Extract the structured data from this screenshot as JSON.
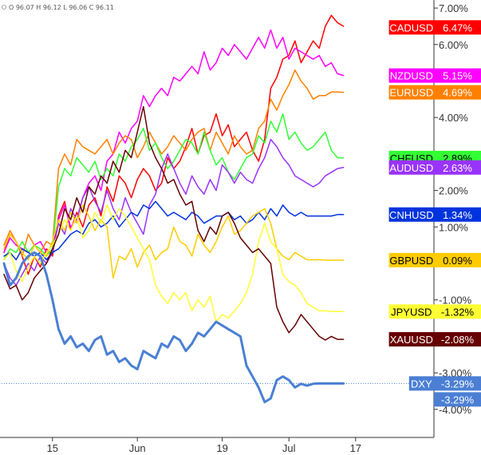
{
  "ohlc": {
    "o": "O",
    "o_val": "96.07",
    "h": "H",
    "h_val": "96.12",
    "l": "L",
    "l_val": "96.06",
    "c": "C",
    "c_val": "96.11"
  },
  "colors": {
    "axis": "#333333",
    "background": "#ffffff",
    "dxy_dotted": "#4a7fd4"
  },
  "chart_data": {
    "type": "line",
    "ylim": [
      -4.7,
      7.1
    ],
    "y_ticks": [
      {
        "value": 7,
        "label": "7.00%"
      },
      {
        "value": 6,
        "label": "6.00%"
      },
      {
        "value": 4,
        "label": "4.00%"
      },
      {
        "value": 2,
        "label": "2.00%"
      },
      {
        "value": 1,
        "label": "1.00%"
      },
      {
        "value": -1,
        "label": "-1.00%"
      },
      {
        "value": -3,
        "label": "-3.00%"
      },
      {
        "value": -4,
        "label": "-4.00%"
      }
    ],
    "x_ticks": [
      {
        "index": 8,
        "label": "15"
      },
      {
        "index": 22,
        "label": "Jun"
      },
      {
        "index": 36,
        "label": "19"
      },
      {
        "index": 47,
        "label": "Jul"
      },
      {
        "index": 58,
        "label": "17"
      }
    ],
    "reference_line": {
      "value": -3.29
    },
    "series": [
      {
        "name": "CADUSD",
        "last": "6.47%",
        "value": 6.47,
        "color": "#ff0000",
        "values": [
          0.3,
          0.8,
          0.6,
          0.2,
          -0.3,
          0.2,
          -0.1,
          0.4,
          0.2,
          1.3,
          1.7,
          0.9,
          1.4,
          1.0,
          1.6,
          1.8,
          1.3,
          2.1,
          1.7,
          2.4,
          2.2,
          1.8,
          2.3,
          2.6,
          2.4,
          2.0,
          2.2,
          2.9,
          2.6,
          2.8,
          3.2,
          3.7,
          3.0,
          3.5,
          3.6,
          4.1,
          3.5,
          3.8,
          3.2,
          3.4,
          3.6,
          3.1,
          2.8,
          3.4,
          4.8,
          5.1,
          5.6,
          5.7,
          6.1,
          5.5,
          5.8,
          6.1,
          5.9,
          6.5,
          6.8,
          6.6,
          6.5
        ]
      },
      {
        "name": "NZDUSD",
        "last": "5.15%",
        "value": 5.15,
        "color": "#ff00ff",
        "values": [
          0.3,
          0.7,
          0.5,
          0.4,
          0.3,
          0.5,
          0.6,
          0.3,
          0.5,
          1.2,
          1.6,
          1.0,
          1.2,
          1.8,
          2.2,
          2.4,
          2.0,
          2.8,
          3.0,
          3.6,
          3.3,
          3.7,
          3.9,
          4.6,
          4.3,
          4.6,
          4.8,
          4.6,
          5.1,
          5.0,
          5.2,
          5.4,
          5.2,
          5.8,
          5.3,
          5.5,
          5.9,
          5.7,
          6.0,
          5.8,
          5.6,
          5.9,
          6.2,
          5.9,
          6.4,
          5.9,
          6.2,
          5.6,
          5.9,
          5.8,
          5.7,
          5.6,
          5.7,
          5.4,
          5.5,
          5.2,
          5.15
        ]
      },
      {
        "name": "EURUSD",
        "last": "4.69%",
        "value": 4.69,
        "color": "#ff8000",
        "values": [
          0.5,
          0.9,
          0.6,
          0.2,
          0.8,
          0.5,
          0.3,
          0.6,
          0.5,
          2.6,
          3.0,
          2.7,
          3.4,
          3.2,
          3.1,
          3.0,
          3.2,
          3.4,
          3.0,
          3.3,
          3.5,
          3.4,
          2.9,
          3.2,
          3.6,
          3.3,
          3.0,
          3.2,
          3.5,
          3.3,
          3.1,
          3.4,
          3.6,
          3.7,
          3.1,
          3.6,
          3.3,
          3.0,
          3.5,
          3.2,
          3.0,
          3.1,
          3.7,
          3.9,
          4.5,
          4.2,
          4.6,
          4.9,
          5.3,
          5.0,
          4.8,
          4.5,
          4.6,
          4.6,
          4.7,
          4.7,
          4.69
        ]
      },
      {
        "name": "CHFUSD",
        "last": "2.89%",
        "value": 2.89,
        "color": "#33ff33",
        "values": [
          0.1,
          0.4,
          0.3,
          0.6,
          0.3,
          0.5,
          0.4,
          0.2,
          0.4,
          2.1,
          2.6,
          2.4,
          2.9,
          2.7,
          2.5,
          2.8,
          2.3,
          2.6,
          2.4,
          3.0,
          2.8,
          3.2,
          3.4,
          3.7,
          3.1,
          3.3,
          2.9,
          2.6,
          2.8,
          3.1,
          3.4,
          3.3,
          3.0,
          3.6,
          3.1,
          2.7,
          2.9,
          2.5,
          2.3,
          2.6,
          2.9,
          3.0,
          3.5,
          3.3,
          3.9,
          3.6,
          4.1,
          3.4,
          3.6,
          3.3,
          3.1,
          3.2,
          3.4,
          3.6,
          3.1,
          2.9,
          2.89
        ]
      },
      {
        "name": "AUDUSD",
        "last": "2.63%",
        "value": 2.63,
        "color": "#9933ff",
        "values": [
          0.0,
          -0.4,
          -0.6,
          -0.3,
          0.0,
          -0.2,
          0.2,
          0.0,
          0.3,
          1.1,
          0.8,
          1.5,
          1.2,
          1.8,
          2.1,
          1.7,
          1.4,
          2.0,
          1.5,
          1.2,
          1.8,
          1.4,
          1.1,
          0.8,
          1.6,
          1.9,
          2.6,
          3.0,
          2.6,
          2.2,
          1.9,
          2.4,
          2.1,
          1.9,
          2.3,
          2.0,
          2.7,
          2.5,
          2.2,
          2.5,
          2.3,
          2.2,
          2.6,
          2.9,
          3.4,
          3.2,
          2.9,
          2.7,
          2.4,
          2.3,
          2.2,
          2.1,
          2.2,
          2.4,
          2.5,
          2.6,
          2.63
        ]
      },
      {
        "name": "CNHUSD",
        "last": "1.34%",
        "value": 1.34,
        "color": "#0033dd",
        "values": [
          0.2,
          0.3,
          0.1,
          0.4,
          0.3,
          0.2,
          0.3,
          0.1,
          0.3,
          0.4,
          0.6,
          0.8,
          0.9,
          0.8,
          1.1,
          1.2,
          1.0,
          1.1,
          1.3,
          1.0,
          1.2,
          1.4,
          1.3,
          1.6,
          1.5,
          1.7,
          1.5,
          1.3,
          1.4,
          1.3,
          1.2,
          1.4,
          1.3,
          1.1,
          1.2,
          1.3,
          1.3,
          1.4,
          1.2,
          1.3,
          1.1,
          1.2,
          1.4,
          1.2,
          1.5,
          1.3,
          1.6,
          1.4,
          1.3,
          1.4,
          1.3,
          1.3,
          1.3,
          1.3,
          1.3,
          1.34,
          1.34
        ]
      },
      {
        "name": "GBPUSD",
        "last": "0.09%",
        "value": 0.09,
        "color": "#ffcc00",
        "values": [
          0.4,
          0.8,
          0.6,
          0.3,
          0.1,
          0.5,
          0.3,
          0.2,
          0.6,
          1.2,
          0.9,
          1.4,
          1.1,
          1.6,
          1.3,
          0.9,
          1.2,
          1.0,
          -0.4,
          0.2,
          0.1,
          0.4,
          -0.1,
          0.3,
          0.5,
          0.1,
          0.3,
          0.4,
          1.0,
          0.6,
          0.5,
          0.2,
          0.8,
          0.5,
          0.3,
          0.6,
          1.0,
          1.3,
          0.8,
          0.9,
          1.1,
          1.3,
          1.4,
          1.5,
          1.1,
          0.4,
          0.2,
          0.1,
          0.3,
          0.2,
          0.1,
          0.1,
          0.1,
          0.09,
          0.09,
          0.09,
          0.09
        ]
      },
      {
        "name": "JPYUSD",
        "last": "-1.32%",
        "value": -1.32,
        "color": "#ffff33",
        "values": [
          0.1,
          0.3,
          -0.2,
          -0.5,
          -0.1,
          0.2,
          0.0,
          0.3,
          0.5,
          0.8,
          1.2,
          0.9,
          1.3,
          0.7,
          0.9,
          1.4,
          1.1,
          1.6,
          1.2,
          1.5,
          1.3,
          1.0,
          0.7,
          0.4,
          0.1,
          -0.6,
          -0.9,
          -1.1,
          -0.8,
          -1.0,
          -0.8,
          -1.3,
          -1.0,
          -1.2,
          -0.9,
          -1.6,
          -1.4,
          -1.5,
          -1.3,
          -1.1,
          -0.8,
          -0.3,
          0.6,
          1.1,
          0.6,
          0.4,
          -0.3,
          -0.5,
          -0.6,
          -0.8,
          -1.1,
          -1.2,
          -1.3,
          -1.3,
          -1.32,
          -1.32,
          -1.32
        ]
      },
      {
        "name": "XAUUSD",
        "last": "-2.08%",
        "value": -2.08,
        "color": "#660000",
        "values": [
          -0.3,
          -0.7,
          -0.6,
          -1.0,
          -0.8,
          -0.4,
          -0.2,
          0.0,
          0.4,
          0.8,
          1.5,
          1.2,
          1.8,
          1.4,
          2.1,
          1.9,
          2.4,
          2.2,
          2.8,
          2.5,
          3.1,
          2.9,
          3.6,
          4.3,
          3.3,
          2.9,
          2.6,
          2.2,
          2.3,
          1.9,
          1.6,
          1.7,
          0.9,
          0.6,
          1.0,
          0.8,
          1.3,
          1.4,
          1.1,
          0.7,
          0.5,
          0.3,
          0.4,
          0.2,
          0.0,
          -1.2,
          -1.6,
          -1.9,
          -1.7,
          -1.4,
          -1.6,
          -1.8,
          -2.0,
          -2.1,
          -2.0,
          -2.08,
          -2.08
        ]
      },
      {
        "name": "DXY",
        "last": "-3.29%",
        "value": -3.29,
        "color": "#4a7fd4",
        "values": [
          0.0,
          -0.6,
          -0.4,
          0.0,
          0.2,
          0.3,
          0.2,
          -0.3,
          -1.0,
          -1.8,
          -2.2,
          -2.0,
          -2.3,
          -2.2,
          -2.4,
          -2.1,
          -2.0,
          -2.5,
          -2.4,
          -2.7,
          -2.6,
          -2.8,
          -2.9,
          -2.4,
          -2.5,
          -2.6,
          -2.2,
          -2.3,
          -2.0,
          -2.1,
          -2.4,
          -2.2,
          -1.9,
          -2.0,
          -1.8,
          -1.6,
          -1.7,
          -1.8,
          -1.9,
          -2.0,
          -2.8,
          -3.1,
          -3.4,
          -3.8,
          -3.7,
          -3.2,
          -3.1,
          -3.2,
          -3.4,
          -3.3,
          -3.35,
          -3.3,
          -3.29,
          -3.29,
          -3.29,
          -3.29,
          -3.29
        ]
      }
    ],
    "dxy_axis_value": "-3.29%"
  }
}
